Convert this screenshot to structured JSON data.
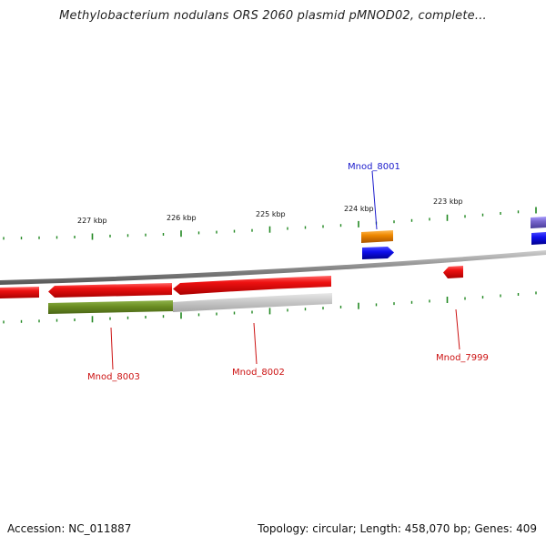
{
  "title": "Methylobacterium nodulans ORS 2060 plasmid pMNOD02, complete...",
  "footer": {
    "accession": "Accession: NC_011887",
    "stats": "Topology: circular; Length: 458,070 bp; Genes: 409"
  },
  "scale_labels": [
    "227 kbp",
    "226 kbp",
    "225 kbp",
    "224 kbp",
    "223 kbp"
  ],
  "gene_labels": {
    "top": [
      "Mnod_8001"
    ],
    "bottom": [
      "Mnod_8003",
      "Mnod_8002",
      "Mnod_7999"
    ]
  },
  "colors": {
    "red_gene": "#ee1111",
    "blue_gene": "#1a1aee",
    "orange_gene": "#ee8800",
    "purple_gene": "#7766cc",
    "olive_gene": "#6b8e23",
    "gray_gene": "#c8c8c8",
    "tick_green": "#228822",
    "backbone": "#888888",
    "blue_label": "#1a1acc",
    "red_label": "#cc1111"
  }
}
